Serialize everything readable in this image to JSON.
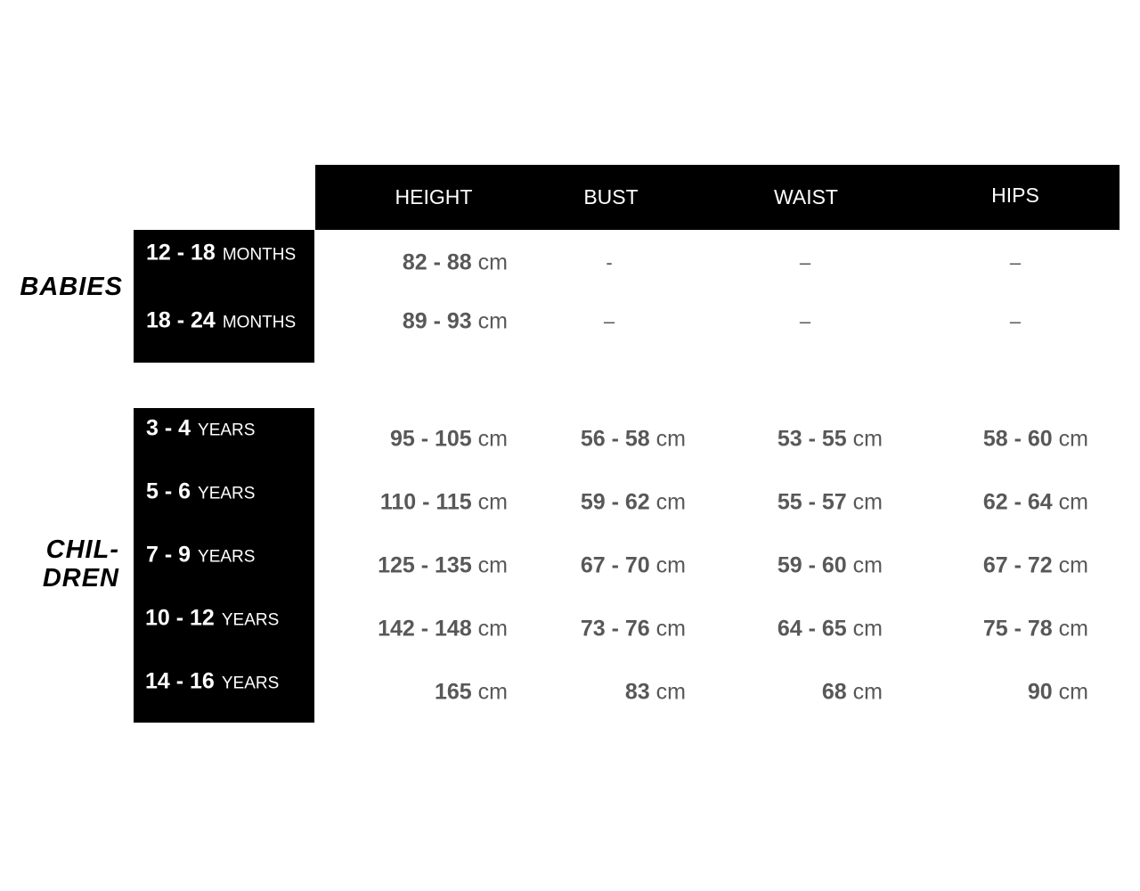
{
  "columns": [
    "HEIGHT",
    "BUST",
    "WAIST",
    "HIPS"
  ],
  "groups": [
    {
      "label": "BABIES",
      "rows": [
        {
          "age": "12 - 18",
          "unit": "MONTHS",
          "values": [
            {
              "num": "82 - 88",
              "unit": "cm"
            },
            {
              "dash": "-"
            },
            {
              "dash": "–"
            },
            {
              "dash": "–"
            }
          ]
        },
        {
          "age": "18 - 24",
          "unit": "MONTHS",
          "values": [
            {
              "num": "89 - 93",
              "unit": "cm"
            },
            {
              "dash": "–"
            },
            {
              "dash": "–"
            },
            {
              "dash": "–"
            }
          ]
        }
      ]
    },
    {
      "label_line1": "CHIL-",
      "label_line2": "DREN",
      "rows": [
        {
          "age": "3 - 4",
          "unit": "YEARS",
          "values": [
            {
              "num": "95 - 105",
              "unit": "cm"
            },
            {
              "num": "56 - 58",
              "unit": "cm"
            },
            {
              "num": "53 - 55",
              "unit": "cm"
            },
            {
              "num": "58 - 60",
              "unit": "cm"
            }
          ]
        },
        {
          "age": "5 - 6",
          "unit": "YEARS",
          "values": [
            {
              "num": "110 - 115",
              "unit": "cm"
            },
            {
              "num": "59 - 62",
              "unit": "cm"
            },
            {
              "num": "55 - 57",
              "unit": "cm"
            },
            {
              "num": "62 - 64",
              "unit": "cm"
            }
          ]
        },
        {
          "age": "7 - 9",
          "unit": "YEARS",
          "values": [
            {
              "num": "125 - 135",
              "unit": "cm"
            },
            {
              "num": "67 - 70",
              "unit": "cm"
            },
            {
              "num": "59 - 60",
              "unit": "cm"
            },
            {
              "num": "67 - 72",
              "unit": "cm"
            }
          ]
        },
        {
          "age": "10 - 12",
          "unit": "YEARS",
          "values": [
            {
              "num": "142 - 148",
              "unit": "cm"
            },
            {
              "num": "73 - 76",
              "unit": "cm"
            },
            {
              "num": "64 - 65",
              "unit": "cm"
            },
            {
              "num": "75 - 78",
              "unit": "cm"
            }
          ]
        },
        {
          "age": "14 - 16",
          "unit": "YEARS",
          "values": [
            {
              "num": "165",
              "unit": "cm"
            },
            {
              "num": "83",
              "unit": "cm"
            },
            {
              "num": "68",
              "unit": "cm"
            },
            {
              "num": "90",
              "unit": "cm"
            }
          ]
        }
      ]
    }
  ]
}
